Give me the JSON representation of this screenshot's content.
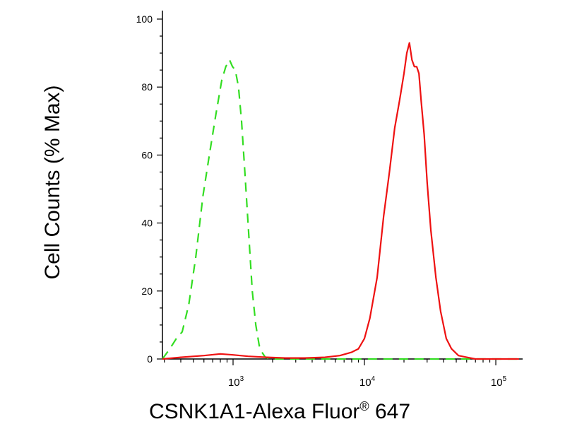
{
  "chart_data": {
    "type": "line",
    "title": "",
    "xlabel": "CSNK1A1-Alexa Fluor",
    "xlabel_sup": "®",
    "xlabel_suffix": " 647",
    "ylabel": "Cell Counts (% Max)",
    "xscale": "log",
    "xlim": [
      290,
      160000
    ],
    "ylim": [
      0,
      100
    ],
    "grid": false,
    "y_ticks": [
      0,
      20,
      40,
      60,
      80,
      100
    ],
    "x_ticks": [
      {
        "base": "10",
        "exp": "3",
        "value": 1000
      },
      {
        "base": "10",
        "exp": "4",
        "value": 10000
      },
      {
        "base": "10",
        "exp": "5",
        "value": 100000
      }
    ],
    "series": [
      {
        "color": "#33dd22",
        "dash": "dashed",
        "x": [
          290,
          330,
          370,
          410,
          460,
          520,
          590,
          660,
          740,
          820,
          880,
          940,
          990,
          1040,
          1100,
          1160,
          1230,
          1310,
          1400,
          1490,
          1580,
          1660,
          1760,
          1900,
          2100,
          3000,
          8000,
          30000,
          100000,
          150000
        ],
        "y": [
          0,
          3,
          6,
          8,
          16,
          30,
          48,
          60,
          72,
          82,
          86,
          88,
          86,
          85,
          80,
          70,
          55,
          38,
          20,
          10,
          4,
          2,
          0.5,
          0,
          0,
          0,
          0,
          0,
          0,
          0
        ]
      },
      {
        "color": "#ee1111",
        "dash": "solid",
        "x": [
          290,
          400,
          600,
          800,
          1000,
          1300,
          1800,
          2500,
          3500,
          5000,
          6500,
          8000,
          9000,
          10000,
          11000,
          12500,
          14000,
          15500,
          17000,
          18500,
          20000,
          21000,
          22000,
          23000,
          24000,
          25000,
          26000,
          27000,
          28500,
          30000,
          32000,
          35000,
          38000,
          42000,
          46000,
          52000,
          60000,
          70000,
          85000,
          110000,
          150000
        ],
        "y": [
          0,
          0.5,
          1,
          1.5,
          1.2,
          0.8,
          0.5,
          0.3,
          0.3,
          0.5,
          1,
          2,
          3,
          6,
          12,
          24,
          42,
          55,
          68,
          76,
          84,
          90,
          93,
          88,
          86,
          86,
          84,
          76,
          66,
          52,
          38,
          24,
          14,
          6,
          3,
          1,
          0.5,
          0,
          0,
          0,
          0
        ]
      }
    ]
  }
}
